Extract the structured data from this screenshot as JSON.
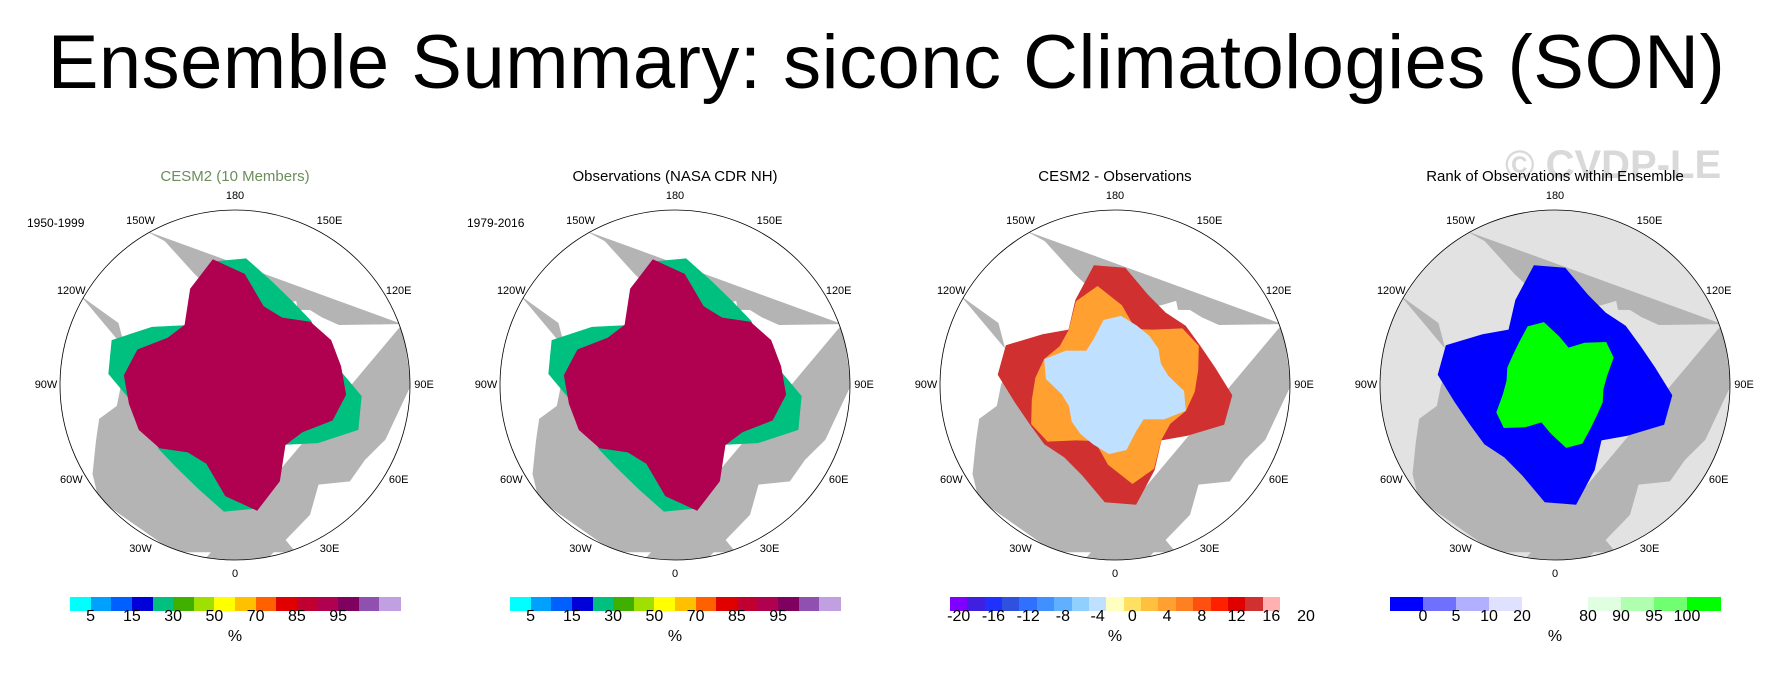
{
  "title": "Ensemble Summary: siconc Climatologies (SON)",
  "watermark": "© CVDP-LE",
  "lon_labels": [
    "180",
    "150E",
    "120E",
    "90E",
    "60E",
    "30E",
    "0",
    "30W",
    "60W",
    "90W",
    "120W",
    "150W"
  ],
  "chart_data": [
    {
      "type": "heatmap",
      "title": "CESM2 (10 Members)",
      "title_color": "#6b8e5a",
      "period": "1950-1999",
      "units": "%",
      "colorbar": {
        "colors": [
          "#00ffff",
          "#00a0ff",
          "#0060ff",
          "#0000d8",
          "#00c080",
          "#40b000",
          "#a0e000",
          "#ffff00",
          "#ffc000",
          "#ff6000",
          "#e00000",
          "#c00030",
          "#b00050",
          "#800060",
          "#9050b0",
          "#c0a0e0"
        ],
        "tick_labels": [
          "5",
          "15",
          "30",
          "50",
          "70",
          "85",
          "95"
        ]
      },
      "land_color": "#b4b4b4",
      "ocean_color": "#ffffff"
    },
    {
      "type": "heatmap",
      "title": "Observations (NASA CDR NH)",
      "title_color": "#000000",
      "period": "1979-2016",
      "units": "%",
      "colorbar": {
        "colors": [
          "#00ffff",
          "#00a0ff",
          "#0060ff",
          "#0000d8",
          "#00c080",
          "#40b000",
          "#a0e000",
          "#ffff00",
          "#ffc000",
          "#ff6000",
          "#e00000",
          "#c00030",
          "#b00050",
          "#800060",
          "#9050b0",
          "#c0a0e0"
        ],
        "tick_labels": [
          "5",
          "15",
          "30",
          "50",
          "70",
          "85",
          "95"
        ]
      },
      "land_color": "#b4b4b4",
      "ocean_color": "#ffffff"
    },
    {
      "type": "heatmap",
      "title": "CESM2 - Observations",
      "title_color": "#000000",
      "period": "",
      "units": "%",
      "colorbar": {
        "colors": [
          "#8000ff",
          "#4020e0",
          "#2030ff",
          "#3050e0",
          "#3070ff",
          "#4090ff",
          "#60b0ff",
          "#90d0ff",
          "#c0e0ff",
          "#ffffc0",
          "#ffe060",
          "#ffc040",
          "#ffa030",
          "#ff8020",
          "#ff5010",
          "#ff2000",
          "#e00000",
          "#d03030",
          "#ffb0b0"
        ],
        "tick_labels": [
          "-20",
          "-16",
          "-12",
          "-8",
          "-4",
          "0",
          "4",
          "8",
          "12",
          "16",
          "20"
        ]
      },
      "land_color": "#b4b4b4",
      "ocean_color": "#ffffff"
    },
    {
      "type": "heatmap",
      "title": "Rank of Observations within Ensemble",
      "title_color": "#000000",
      "period": "",
      "units": "%",
      "colorbar": {
        "colors": [
          "#0000ff",
          "#7070ff",
          "#b0b0ff",
          "#e0e0ff",
          "#ffffff",
          "#ffffff",
          "#e0ffe0",
          "#b0ffb0",
          "#70ff70",
          "#00ff00"
        ],
        "tick_labels": [
          "0",
          "5",
          "10",
          "20",
          "80",
          "90",
          "95",
          "100"
        ]
      },
      "land_color": "#b4b4b4",
      "ocean_color": "#e2e2e2"
    }
  ]
}
